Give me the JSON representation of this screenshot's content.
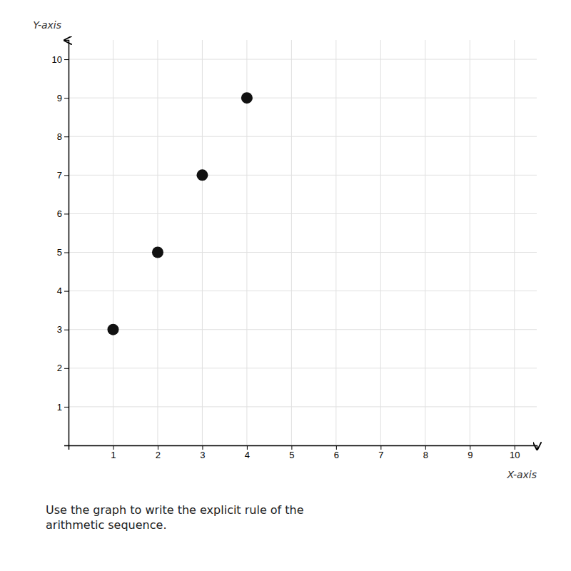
{
  "chart_data": {
    "type": "scatter",
    "x": [
      1,
      2,
      3,
      4
    ],
    "values": [
      3,
      5,
      7,
      9
    ],
    "color": "#111111",
    "xlim": [
      0,
      10.5
    ],
    "ylim": [
      0,
      10.5
    ],
    "xticks": [
      1,
      2,
      3,
      4,
      5,
      6,
      7,
      8,
      9,
      10
    ],
    "yticks": [
      1,
      2,
      3,
      4,
      5,
      6,
      7,
      8,
      9,
      10
    ],
    "xlabel": "X-axis",
    "ylabel": "Y-axis",
    "grid": true,
    "annotations": [
      "Use the graph to write the explicit rule of the\narithmetic sequence."
    ]
  }
}
